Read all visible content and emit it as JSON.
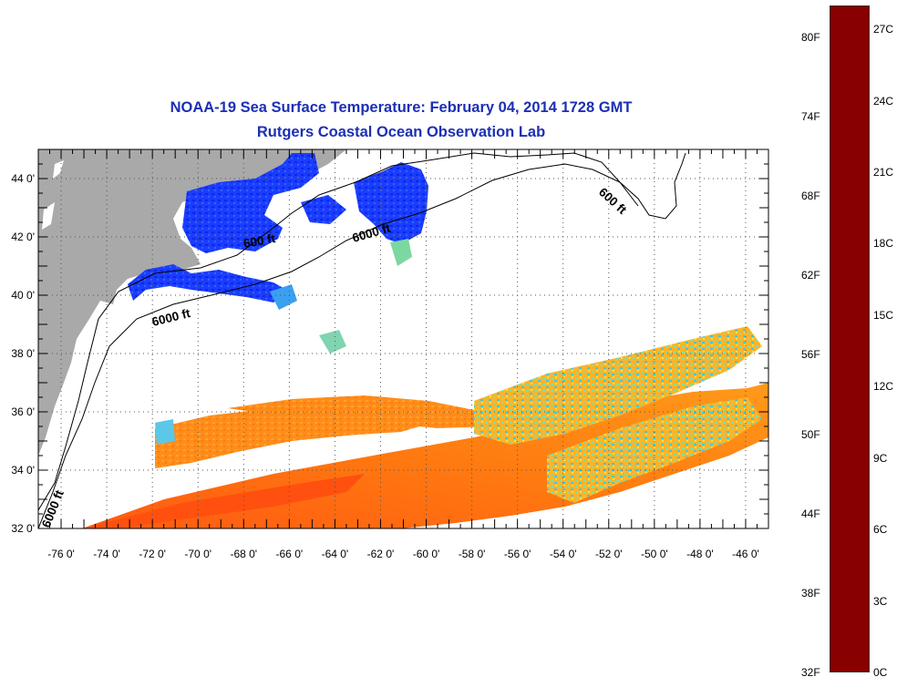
{
  "title": {
    "line1": "NOAA-19 Sea Surface Temperature:  February 04, 2014 1728 GMT",
    "line2": "Rutgers Coastal Ocean Observation Lab"
  },
  "map": {
    "lon_range": [
      -77,
      -45
    ],
    "lat_range": [
      32,
      45
    ],
    "lon_tick_labels": [
      "-76 0'",
      "-74 0'",
      "-72 0'",
      "-70 0'",
      "-68 0'",
      "-66 0'",
      "-64 0'",
      "-62 0'",
      "-60 0'",
      "-58 0'",
      "-56 0'",
      "-54 0'",
      "-52 0'",
      "-50 0'",
      "-48 0'",
      "-46 0'"
    ],
    "lat_tick_labels": [
      "32 0'",
      "34 0'",
      "36 0'",
      "38 0'",
      "40 0'",
      "42 0'",
      "44 0'"
    ],
    "contour_labels": [
      "6000 ft",
      "600 ft",
      "6000 ft",
      "600 ft",
      "6000 ft"
    ],
    "land_color": "#a9a9a9",
    "grid": "dotted"
  },
  "colorbar": {
    "celsius_labels": [
      "0C",
      "3C",
      "6C",
      "9C",
      "12C",
      "15C",
      "18C",
      "21C",
      "24C",
      "27C"
    ],
    "fahrenheit_labels": [
      "32F",
      "38F",
      "44F",
      "50F",
      "56F",
      "62F",
      "68F",
      "74F",
      "80F"
    ],
    "range_c": [
      0,
      28
    ],
    "colors": [
      "#000088",
      "#0000ff",
      "#0090ff",
      "#00ffff",
      "#80ff80",
      "#ffff00",
      "#ff9000",
      "#ff0000",
      "#880000"
    ]
  }
}
